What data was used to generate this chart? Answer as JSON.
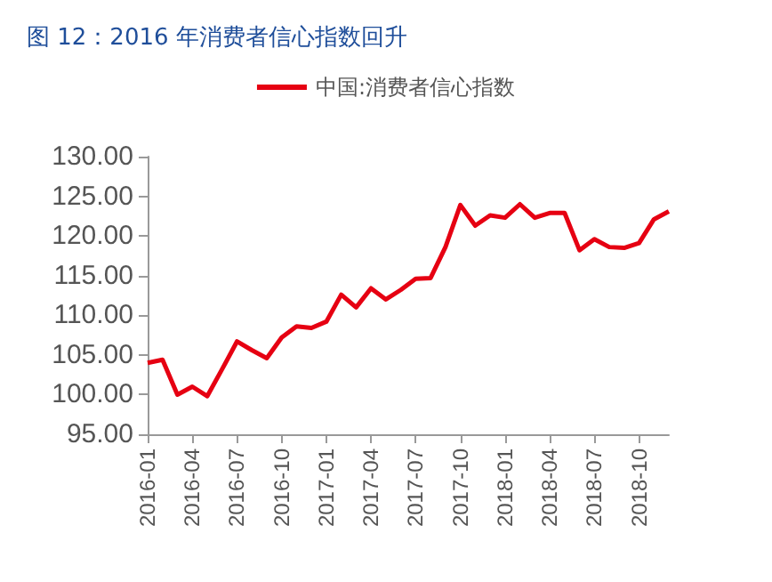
{
  "chart_data": {
    "type": "line",
    "title": "图 12：2016 年消费者信心指数回升",
    "categories": [
      "2016-01",
      null,
      null,
      "2016-04",
      null,
      null,
      "2016-07",
      null,
      null,
      "2016-10",
      null,
      null,
      "2017-01",
      null,
      null,
      "2017-04",
      null,
      null,
      "2017-07",
      null,
      null,
      "2017-10",
      null,
      null,
      "2018-01",
      null,
      null,
      "2018-04",
      null,
      null,
      "2018-07",
      null,
      null,
      "2018-10",
      null,
      null
    ],
    "series": [
      {
        "name": "中国:消费者信心指数",
        "color": "#e60012",
        "values": [
          104.0,
          104.4,
          100.0,
          101.0,
          99.8,
          103.2,
          106.7,
          105.6,
          104.6,
          107.2,
          108.6,
          108.4,
          109.2,
          112.6,
          111.0,
          113.4,
          112.0,
          113.2,
          114.6,
          114.7,
          118.6,
          123.9,
          121.3,
          122.6,
          122.3,
          124.0,
          122.3,
          122.9,
          122.9,
          118.2,
          119.6,
          118.6,
          118.5,
          119.1,
          122.1,
          123.1
        ]
      }
    ],
    "ylim": [
      95,
      130
    ],
    "yticks": [
      {
        "value": 95,
        "label": "95.00"
      },
      {
        "value": 100,
        "label": "100.00"
      },
      {
        "value": 105,
        "label": "105.00"
      },
      {
        "value": 110,
        "label": "110.00"
      },
      {
        "value": 115,
        "label": "115.00"
      },
      {
        "value": 120,
        "label": "120.00"
      },
      {
        "value": 125,
        "label": "125.00"
      },
      {
        "value": 130,
        "label": "130.00"
      }
    ],
    "grid": false,
    "legend": "top",
    "marker": "none",
    "line_style": "solid"
  }
}
